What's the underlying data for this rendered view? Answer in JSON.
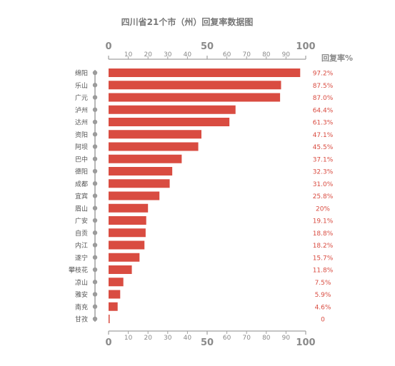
{
  "chart_data": {
    "type": "bar",
    "title": "四川省21个市（州）回复率数据图",
    "rate_label": "回复率%",
    "xlim": [
      0,
      100
    ],
    "major_ticks": [
      "0",
      "50",
      "100"
    ],
    "minor_ticks": [
      "10",
      "20",
      "30",
      "40",
      "60",
      "70",
      "80",
      "90"
    ],
    "categories": [
      "绵阳",
      "乐山",
      "广元",
      "泸州",
      "达州",
      "资阳",
      "阿坝",
      "巴中",
      "德阳",
      "成都",
      "宜宾",
      "眉山",
      "广安",
      "自贡",
      "内江",
      "遂宁",
      "攀枝花",
      "凉山",
      "雅安",
      "南充",
      "甘孜"
    ],
    "values": [
      97.2,
      87.5,
      87.0,
      64.4,
      61.3,
      47.1,
      45.5,
      37.1,
      32.3,
      31.0,
      25.8,
      20,
      19.1,
      18.8,
      18.2,
      15.7,
      11.8,
      7.5,
      5.9,
      4.6,
      0
    ],
    "value_labels": [
      "97.2%",
      "87.5%",
      "87.0%",
      "64.4%",
      "61.3%",
      "47.1%",
      "45.5%",
      "37.1%",
      "32.3%",
      "31.0%",
      "25.8%",
      "20%",
      "19.1%",
      "18.8%",
      "18.2%",
      "15.7%",
      "11.8%",
      "7.5%",
      "5.9%",
      "4.6%",
      "0"
    ],
    "bar_color": "#d94c41",
    "axis_color": "#a0a0a0"
  }
}
